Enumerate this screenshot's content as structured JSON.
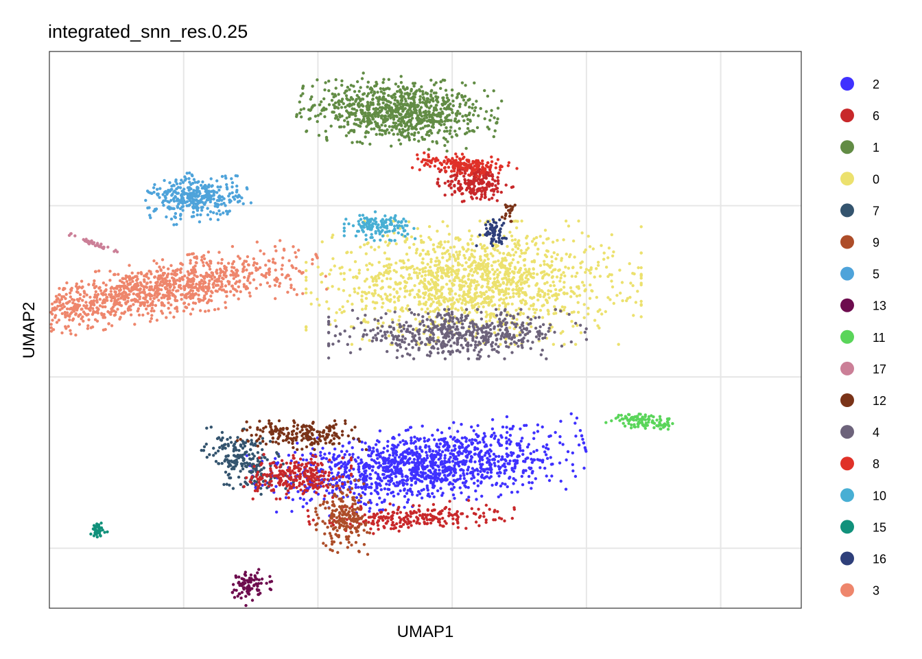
{
  "chart_data": {
    "type": "scatter",
    "title": "integrated_snn_res.0.25",
    "xlabel": "UMAP1",
    "ylabel": "UMAP2",
    "xlim": [
      -11,
      17
    ],
    "ylim": [
      -13.5,
      19
    ],
    "grid": true,
    "legend_position": "right",
    "tick_labels_shown": false,
    "legend": [
      {
        "label": "2",
        "color": "#3F31FF"
      },
      {
        "label": "6",
        "color": "#C8282A"
      },
      {
        "label": "1",
        "color": "#628C45"
      },
      {
        "label": "0",
        "color": "#ECE16E"
      },
      {
        "label": "7",
        "color": "#34546E"
      },
      {
        "label": "9",
        "color": "#AD4D29"
      },
      {
        "label": "5",
        "color": "#4EA3DA"
      },
      {
        "label": "13",
        "color": "#6D0C4E"
      },
      {
        "label": "11",
        "color": "#5AD55A"
      },
      {
        "label": "17",
        "color": "#CB7F97"
      },
      {
        "label": "12",
        "color": "#7A3318"
      },
      {
        "label": "4",
        "color": "#6D637B"
      },
      {
        "label": "8",
        "color": "#E03128"
      },
      {
        "label": "10",
        "color": "#48AFD4"
      },
      {
        "label": "15",
        "color": "#11917B"
      },
      {
        "label": "16",
        "color": "#2E3F7A"
      },
      {
        "label": "3",
        "color": "#EE866C"
      }
    ],
    "clusters": [
      {
        "label": "1",
        "cx": 2,
        "cy": 15.5,
        "sx": 1.55,
        "sy": 0.85,
        "n": 900,
        "rot": -8
      },
      {
        "label": "6",
        "cx": 4.9,
        "cy": 11.3,
        "sx": 0.6,
        "sy": 0.5,
        "n": 220,
        "rot": -5
      },
      {
        "label": "8",
        "cx": 4.5,
        "cy": 12.4,
        "sx": 0.8,
        "sy": 0.25,
        "n": 180,
        "rot": -10
      },
      {
        "label": "0",
        "cx": 4.8,
        "cy": 5.5,
        "sx": 2.6,
        "sy": 1.5,
        "n": 1400,
        "rot": 0
      },
      {
        "label": "4",
        "cx": 4.2,
        "cy": 2.5,
        "sx": 2.0,
        "sy": 0.6,
        "n": 550,
        "rot": 0
      },
      {
        "label": "10",
        "cx": 1.3,
        "cy": 8.8,
        "sx": 0.55,
        "sy": 0.35,
        "n": 140,
        "rot": 0
      },
      {
        "label": "16",
        "cx": 5.5,
        "cy": 8.5,
        "sx": 0.25,
        "sy": 0.35,
        "n": 60,
        "rot": 0
      },
      {
        "label": "5",
        "cx": -5.5,
        "cy": 10.5,
        "sx": 0.8,
        "sy": 0.6,
        "n": 350,
        "rot": 10
      },
      {
        "label": "3",
        "cx": -7.2,
        "cy": 5.0,
        "sx": 2.7,
        "sy": 0.7,
        "n": 1100,
        "rot": 16
      },
      {
        "label": "17",
        "cx": -9.2,
        "cy": 7.7,
        "sx": 0.5,
        "sy": 0.08,
        "n": 40,
        "rot": -30
      },
      {
        "label": "2",
        "cx": 2.8,
        "cy": -5.2,
        "sx": 2.6,
        "sy": 0.95,
        "n": 1300,
        "rot": 10
      },
      {
        "label": "7",
        "cx": -3.8,
        "cy": -4.8,
        "sx": 0.55,
        "sy": 0.9,
        "n": 220,
        "rot": 20
      },
      {
        "label": "12",
        "cx": -1.6,
        "cy": -3.4,
        "sx": 1.0,
        "sy": 0.35,
        "n": 200,
        "rot": 0
      },
      {
        "label": "6",
        "cx": -1.8,
        "cy": -5.8,
        "sx": 0.85,
        "sy": 0.55,
        "n": 260,
        "rot": 0
      },
      {
        "label": "6",
        "cx": 2.5,
        "cy": -8.2,
        "sx": 1.6,
        "sy": 0.35,
        "n": 240,
        "rot": 4
      },
      {
        "label": "9",
        "cx": 0,
        "cy": -8.2,
        "sx": 0.45,
        "sy": 0.9,
        "n": 200,
        "rot": 0
      },
      {
        "label": "13",
        "cx": -3.5,
        "cy": -12.2,
        "sx": 0.35,
        "sy": 0.45,
        "n": 90,
        "rot": -30
      },
      {
        "label": "15",
        "cx": -9.2,
        "cy": -9.0,
        "sx": 0.15,
        "sy": 0.2,
        "n": 40,
        "rot": 0
      },
      {
        "label": "11",
        "cx": 11.2,
        "cy": -2.6,
        "sx": 0.6,
        "sy": 0.2,
        "n": 110,
        "rot": -10
      },
      {
        "label": "12",
        "cx": 6.1,
        "cy": 9.8,
        "sx": 0.1,
        "sy": 0.3,
        "n": 20,
        "rot": 0
      }
    ]
  }
}
